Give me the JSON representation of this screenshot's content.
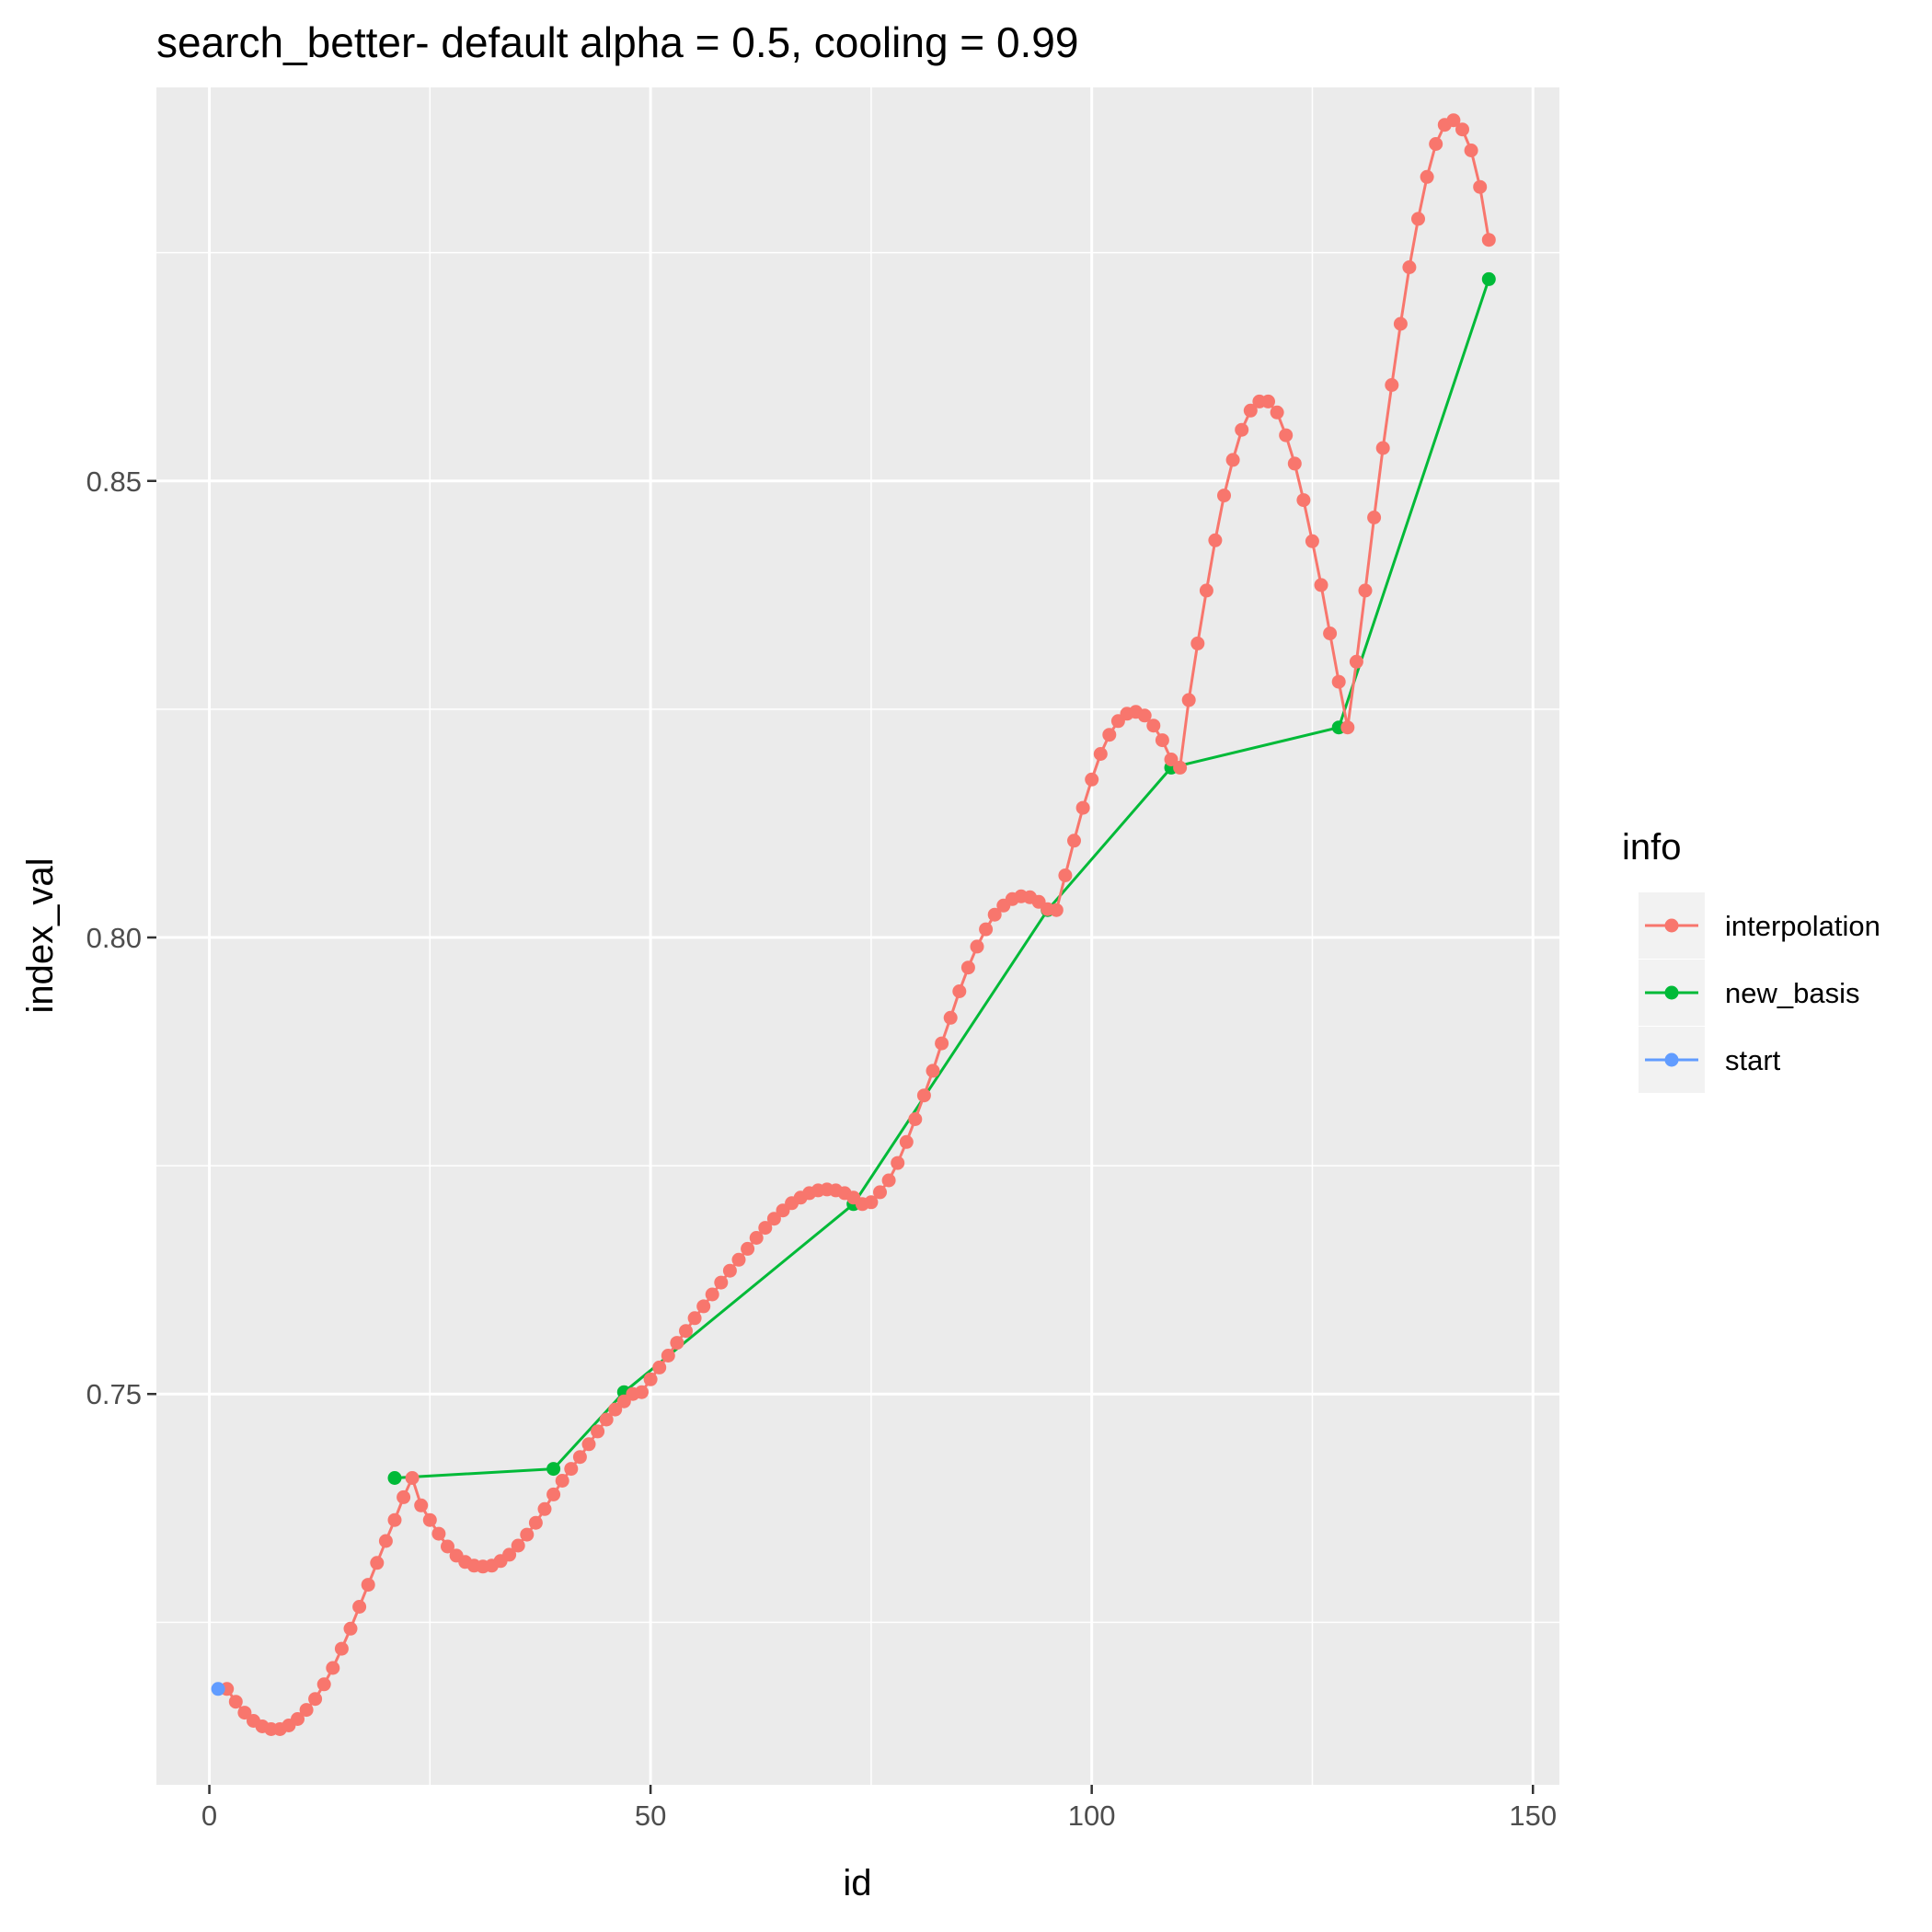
{
  "chart_data": {
    "type": "line",
    "title": "search_better- default alpha = 0.5, cooling = 0.99",
    "xlabel": "id",
    "ylabel": "index_val",
    "xlim": [
      -6,
      153
    ],
    "ylim": [
      0.7072,
      0.8931
    ],
    "x_ticks": [
      0,
      50,
      100,
      150
    ],
    "x_tick_labels": [
      "0",
      "50",
      "100",
      "150"
    ],
    "x_minor_ticks": [
      25,
      75,
      125
    ],
    "y_ticks": [
      0.75,
      0.8,
      0.85
    ],
    "y_tick_labels": [
      "0.75",
      "0.80",
      "0.85"
    ],
    "y_minor_ticks": [
      0.725,
      0.775,
      0.825,
      0.875
    ],
    "grid": true,
    "legend": {
      "title": "info",
      "position": "right",
      "entries": [
        "interpolation",
        "new_basis",
        "start"
      ]
    },
    "series": [
      {
        "name": "interpolation",
        "color": "#F8766D",
        "points": [
          [
            2,
            0.7177
          ],
          [
            3,
            0.7163
          ],
          [
            4,
            0.7151
          ],
          [
            5,
            0.7142
          ],
          [
            6,
            0.7136
          ],
          [
            7,
            0.7133
          ],
          [
            8,
            0.7133
          ],
          [
            9,
            0.7137
          ],
          [
            10,
            0.7144
          ],
          [
            11,
            0.7154
          ],
          [
            12,
            0.7166
          ],
          [
            13,
            0.7182
          ],
          [
            14,
            0.72
          ],
          [
            15,
            0.7221
          ],
          [
            16,
            0.7243
          ],
          [
            17,
            0.7267
          ],
          [
            18,
            0.7291
          ],
          [
            19,
            0.7315
          ],
          [
            20,
            0.7339
          ],
          [
            21,
            0.7362
          ],
          [
            22,
            0.7387
          ],
          [
            23,
            0.7408
          ],
          [
            24,
            0.7378
          ],
          [
            25,
            0.7362
          ],
          [
            26,
            0.7347
          ],
          [
            27,
            0.7333
          ],
          [
            28,
            0.7323
          ],
          [
            29,
            0.7316
          ],
          [
            30,
            0.7312
          ],
          [
            31,
            0.7311
          ],
          [
            32,
            0.7312
          ],
          [
            33,
            0.7317
          ],
          [
            34,
            0.7324
          ],
          [
            35,
            0.7334
          ],
          [
            36,
            0.7346
          ],
          [
            37,
            0.7359
          ],
          [
            38,
            0.7374
          ],
          [
            39,
            0.739
          ],
          [
            40,
            0.7405
          ],
          [
            41,
            0.7418
          ],
          [
            42,
            0.7431
          ],
          [
            43,
            0.7445
          ],
          [
            44,
            0.7459
          ],
          [
            45,
            0.7472
          ],
          [
            46,
            0.7483
          ],
          [
            47,
            0.7492
          ],
          [
            48,
            0.75
          ],
          [
            49,
            0.7502
          ],
          [
            50,
            0.7516
          ],
          [
            51,
            0.7529
          ],
          [
            52,
            0.7542
          ],
          [
            53,
            0.7556
          ],
          [
            54,
            0.7569
          ],
          [
            55,
            0.7583
          ],
          [
            56,
            0.7596
          ],
          [
            57,
            0.7609
          ],
          [
            58,
            0.7622
          ],
          [
            59,
            0.7635
          ],
          [
            60,
            0.7647
          ],
          [
            61,
            0.7659
          ],
          [
            62,
            0.7671
          ],
          [
            63,
            0.7682
          ],
          [
            64,
            0.7692
          ],
          [
            65,
            0.7701
          ],
          [
            66,
            0.7709
          ],
          [
            67,
            0.7715
          ],
          [
            68,
            0.772
          ],
          [
            69,
            0.7723
          ],
          [
            70,
            0.7724
          ],
          [
            71,
            0.7723
          ],
          [
            72,
            0.772
          ],
          [
            73,
            0.7715
          ],
          [
            74,
            0.7708
          ],
          [
            75,
            0.771
          ],
          [
            76,
            0.7721
          ],
          [
            77,
            0.7734
          ],
          [
            78,
            0.7753
          ],
          [
            79,
            0.7776
          ],
          [
            80,
            0.7801
          ],
          [
            81,
            0.7827
          ],
          [
            82,
            0.7854
          ],
          [
            83,
            0.7884
          ],
          [
            84,
            0.7912
          ],
          [
            85,
            0.7941
          ],
          [
            86,
            0.7967
          ],
          [
            87,
            0.799
          ],
          [
            88,
            0.8009
          ],
          [
            89,
            0.8025
          ],
          [
            90,
            0.8035
          ],
          [
            91,
            0.8042
          ],
          [
            92,
            0.8045
          ],
          [
            93,
            0.8044
          ],
          [
            94,
            0.8039
          ],
          [
            95,
            0.8031
          ],
          [
            96,
            0.803
          ],
          [
            97,
            0.8068
          ],
          [
            98,
            0.8106
          ],
          [
            99,
            0.8142
          ],
          [
            100,
            0.8173
          ],
          [
            101,
            0.8201
          ],
          [
            102,
            0.8222
          ],
          [
            103,
            0.8237
          ],
          [
            104,
            0.8245
          ],
          [
            105,
            0.8247
          ],
          [
            106,
            0.8243
          ],
          [
            107,
            0.8232
          ],
          [
            108,
            0.8216
          ],
          [
            109,
            0.8195
          ],
          [
            110,
            0.8186
          ],
          [
            111,
            0.826
          ],
          [
            112,
            0.8322
          ],
          [
            113,
            0.838
          ],
          [
            114,
            0.8435
          ],
          [
            115,
            0.8484
          ],
          [
            116,
            0.8523
          ],
          [
            117,
            0.8556
          ],
          [
            118,
            0.8577
          ],
          [
            119,
            0.8587
          ],
          [
            120,
            0.8587
          ],
          [
            121,
            0.8575
          ],
          [
            122,
            0.855
          ],
          [
            123,
            0.8519
          ],
          [
            124,
            0.8479
          ],
          [
            125,
            0.8434
          ],
          [
            126,
            0.8386
          ],
          [
            127,
            0.8333
          ],
          [
            128,
            0.828
          ],
          [
            129,
            0.823
          ],
          [
            130,
            0.8302
          ],
          [
            131,
            0.838
          ],
          [
            132,
            0.846
          ],
          [
            133,
            0.8536
          ],
          [
            134,
            0.8605
          ],
          [
            135,
            0.8672
          ],
          [
            136,
            0.8734
          ],
          [
            137,
            0.8787
          ],
          [
            138,
            0.8833
          ],
          [
            139,
            0.8869
          ],
          [
            140,
            0.889
          ],
          [
            141,
            0.8895
          ],
          [
            142,
            0.8885
          ],
          [
            143,
            0.8862
          ],
          [
            144,
            0.8822
          ],
          [
            145,
            0.8764
          ]
        ]
      },
      {
        "name": "new_basis",
        "color": "#00BA38",
        "points": [
          [
            21,
            0.7408
          ],
          [
            39,
            0.7418
          ],
          [
            47,
            0.7502
          ],
          [
            73,
            0.7708
          ],
          [
            95,
            0.803
          ],
          [
            109,
            0.8186
          ],
          [
            128,
            0.823
          ],
          [
            145,
            0.8721
          ]
        ]
      },
      {
        "name": "start",
        "color": "#619CFF",
        "points": [
          [
            1,
            0.7177
          ]
        ]
      }
    ]
  }
}
